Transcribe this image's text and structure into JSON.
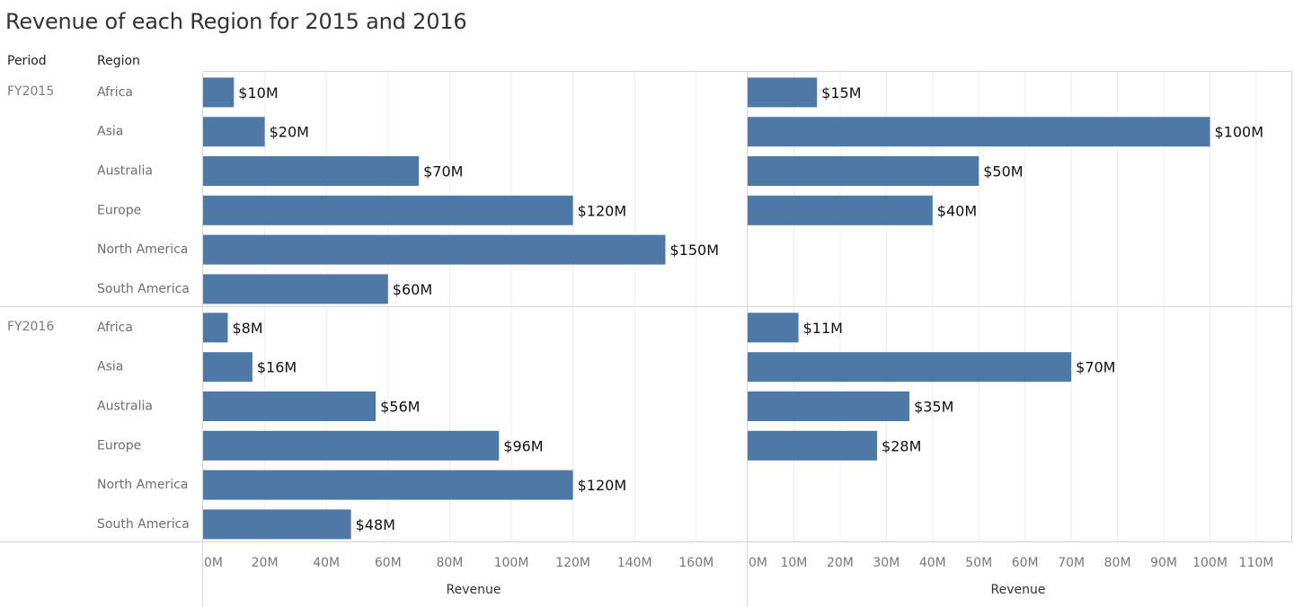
{
  "chart_data": {
    "type": "bar",
    "orientation": "horizontal",
    "title": "Revenue of each Region for 2015 and 2016",
    "row_headers": {
      "period": "Period",
      "region": "Region"
    },
    "bar_color": "#4e79a7",
    "grid": true,
    "groups": [
      {
        "period": "FY2015",
        "categories": [
          "Africa",
          "Asia",
          "Australia",
          "Europe",
          "North America",
          "South America"
        ]
      },
      {
        "period": "FY2016",
        "categories": [
          "Africa",
          "Asia",
          "Australia",
          "Europe",
          "North America",
          "South America"
        ]
      }
    ],
    "panels": [
      {
        "xlabel": "Revenue",
        "xlim": [
          0,
          176
        ],
        "ticks": [
          {
            "v": 0,
            "label": "0M"
          },
          {
            "v": 20,
            "label": "20M"
          },
          {
            "v": 40,
            "label": "40M"
          },
          {
            "v": 60,
            "label": "60M"
          },
          {
            "v": 80,
            "label": "80M"
          },
          {
            "v": 100,
            "label": "100M"
          },
          {
            "v": 120,
            "label": "120M"
          },
          {
            "v": 140,
            "label": "140M"
          },
          {
            "v": 160,
            "label": "160M"
          }
        ],
        "values": [
          [
            10,
            20,
            70,
            120,
            150,
            60
          ],
          [
            8,
            16,
            56,
            96,
            120,
            48
          ]
        ],
        "labels": [
          [
            "$10M",
            "$20M",
            "$70M",
            "$120M",
            "$150M",
            "$60M"
          ],
          [
            "$8M",
            "$16M",
            "$56M",
            "$96M",
            "$120M",
            "$48M"
          ]
        ]
      },
      {
        "xlabel": "Revenue",
        "xlim": [
          0,
          118
        ],
        "ticks": [
          {
            "v": 0,
            "label": "0M"
          },
          {
            "v": 10,
            "label": "10M"
          },
          {
            "v": 20,
            "label": "20M"
          },
          {
            "v": 30,
            "label": "30M"
          },
          {
            "v": 40,
            "label": "40M"
          },
          {
            "v": 50,
            "label": "50M"
          },
          {
            "v": 60,
            "label": "60M"
          },
          {
            "v": 70,
            "label": "70M"
          },
          {
            "v": 80,
            "label": "80M"
          },
          {
            "v": 90,
            "label": "90M"
          },
          {
            "v": 100,
            "label": "100M"
          },
          {
            "v": 110,
            "label": "110M"
          }
        ],
        "values": [
          [
            15,
            100,
            50,
            40,
            null,
            null
          ],
          [
            11,
            70,
            35,
            28,
            null,
            null
          ]
        ],
        "labels": [
          [
            "$15M",
            "$100M",
            "$50M",
            "$40M",
            "",
            ""
          ],
          [
            "$11M",
            "$70M",
            "$35M",
            "$28M",
            "",
            ""
          ]
        ]
      }
    ]
  }
}
